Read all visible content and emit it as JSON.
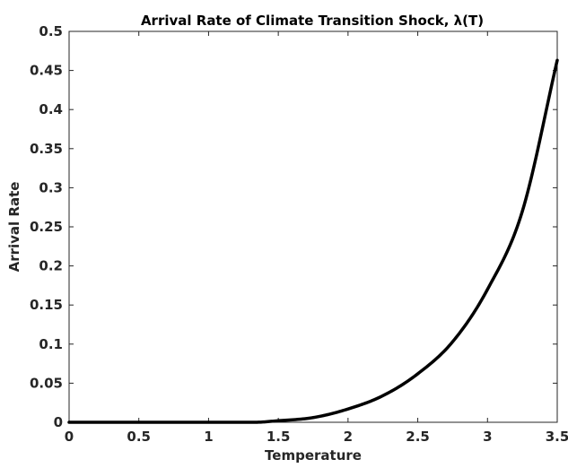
{
  "chart_data": {
    "type": "line",
    "title": "Arrival Rate of Climate Transition Shock, λ(T)",
    "xlabel": "Temperature",
    "ylabel": "Arrival Rate",
    "xlim": [
      0,
      3.5
    ],
    "ylim": [
      0,
      0.5
    ],
    "xticks": [
      "0",
      "0.5",
      "1",
      "1.5",
      "2",
      "2.5",
      "3",
      "3.5"
    ],
    "yticks": [
      "0",
      "0.05",
      "0.1",
      "0.15",
      "0.2",
      "0.25",
      "0.3",
      "0.35",
      "0.4",
      "0.45",
      "0.5"
    ],
    "grid": false,
    "legend": "none",
    "colors": {
      "line": "#000000",
      "axis": "#262626",
      "background": "#ffffff"
    },
    "series": [
      {
        "x": [
          0,
          0.5,
          1.0,
          1.333,
          1.5,
          1.75,
          2.0,
          2.25,
          2.5,
          2.75,
          3.0,
          3.25,
          3.5
        ],
        "values": [
          0,
          0,
          0,
          0,
          0.002,
          0.006,
          0.017,
          0.034,
          0.062,
          0.103,
          0.17,
          0.27,
          0.463
        ]
      }
    ]
  }
}
